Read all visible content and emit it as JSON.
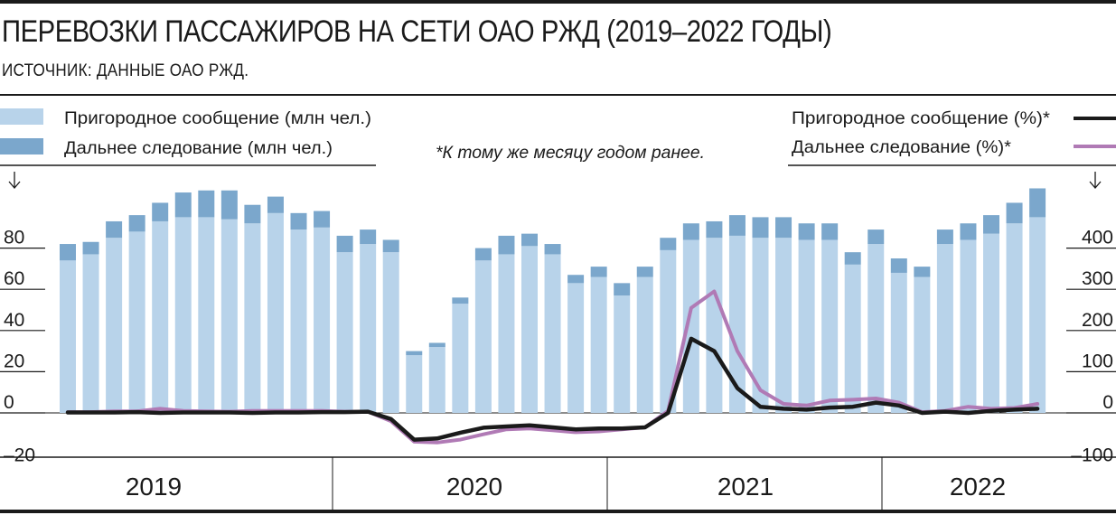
{
  "header": {
    "title": "ПЕРЕВОЗКИ ПАССАЖИРОВ НА СЕТИ ОАО РЖД (2019–2022 ГОДЫ)",
    "subtitle": "ИСТОЧНИК: ДАННЫЕ ОАО РЖД."
  },
  "legend": {
    "suburban_bar": "Пригородное сообщение (млн чел.)",
    "longdist_bar": "Дальнее следование (млн чел.)",
    "suburban_line": "Пригородное сообщение (%)*",
    "longdist_line": "Дальнее следование (%)*",
    "note": "*К тому же месяцу годом ранее."
  },
  "colors": {
    "suburban_bar": "#b8d3ea",
    "longdist_bar": "#7ba7cc",
    "suburban_line": "#1a1a1a",
    "longdist_line": "#b07ab5",
    "text": "#1a1a1a"
  },
  "chart_data": {
    "type": "bar",
    "stacked": true,
    "years": [
      "2019",
      "2020",
      "2021",
      "2022"
    ],
    "left_axis": {
      "ticks": [
        "–20",
        "0",
        "20",
        "40",
        "60",
        "80"
      ],
      "ylim": [
        -20,
        100
      ]
    },
    "right_axis": {
      "ticks": [
        "–100",
        "0",
        "100",
        "200",
        "300",
        "400"
      ],
      "ylim": [
        -100,
        500
      ]
    },
    "series": [
      {
        "name": "Пригородное сообщение (млн чел.)",
        "type": "bar",
        "axis": "left",
        "values": [
          74,
          77,
          85,
          88,
          93,
          95,
          95,
          94,
          92,
          97,
          89,
          90,
          78,
          82,
          78,
          28,
          32,
          53,
          74,
          77,
          81,
          77,
          63,
          66,
          57,
          66,
          79,
          84,
          85,
          86,
          85,
          85,
          84,
          84,
          72,
          82,
          68,
          66,
          82,
          84,
          87,
          92,
          95
        ]
      },
      {
        "name": "Дальнее следование (млн чел.)",
        "type": "bar",
        "axis": "left",
        "values": [
          8,
          6,
          8,
          8,
          9,
          12,
          13,
          14,
          9,
          8,
          8,
          8,
          8,
          7,
          6,
          2,
          2,
          3,
          6,
          9,
          6,
          5,
          4,
          5,
          6,
          5,
          6,
          8,
          8,
          10,
          10,
          10,
          8,
          8,
          6,
          7,
          7,
          5,
          7,
          8,
          9,
          10,
          14
        ]
      },
      {
        "name": "Пригородное сообщение (%)",
        "type": "line",
        "axis": "right",
        "values": [
          1,
          1,
          1,
          2,
          0,
          1,
          1,
          1,
          0,
          1,
          1,
          2,
          2,
          3,
          -15,
          -65,
          -62,
          -48,
          -36,
          -33,
          -30,
          -35,
          -40,
          -38,
          -38,
          -35,
          0,
          180,
          150,
          60,
          15,
          10,
          8,
          13,
          15,
          25,
          18,
          0,
          3,
          0,
          5,
          8,
          10
        ]
      },
      {
        "name": "Дальнее следование (%)",
        "type": "line",
        "axis": "right",
        "values": [
          2,
          2,
          4,
          4,
          10,
          5,
          4,
          3,
          5,
          5,
          5,
          5,
          3,
          3,
          -20,
          -70,
          -72,
          -65,
          -52,
          -40,
          -38,
          -42,
          -47,
          -45,
          -40,
          -35,
          5,
          255,
          295,
          150,
          55,
          22,
          18,
          30,
          32,
          35,
          25,
          2,
          5,
          15,
          10,
          12,
          22
        ]
      }
    ]
  }
}
